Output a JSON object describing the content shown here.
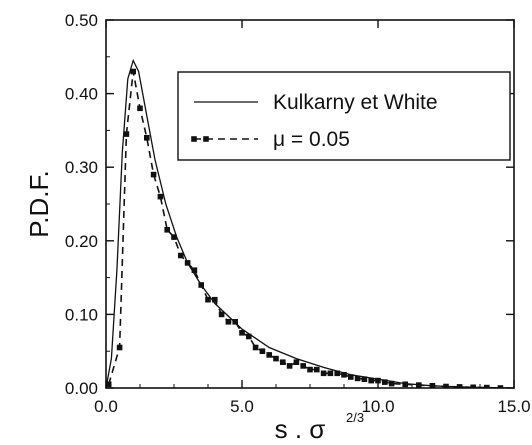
{
  "chart_data": {
    "type": "line",
    "title": "",
    "xlabel": "s . σ",
    "xlabel_sup": "2/3",
    "ylabel": "P.D.F.",
    "xlim": [
      0,
      15
    ],
    "ylim": [
      0,
      0.5
    ],
    "x_ticks": [
      0,
      5,
      10,
      15
    ],
    "x_tick_labels": [
      "0.0",
      "5.0",
      "10.0",
      "15.0"
    ],
    "y_ticks": [
      0,
      0.1,
      0.2,
      0.3,
      0.4,
      0.5
    ],
    "y_tick_labels": [
      "0.00",
      "0.10",
      "0.20",
      "0.30",
      "0.40",
      "0.50"
    ],
    "grid": false,
    "legend_position": "top-right",
    "series": [
      {
        "name": "Kulkarny et White",
        "style": "solid",
        "marker": "none",
        "x": [
          0.0,
          0.2,
          0.4,
          0.6,
          0.8,
          1.0,
          1.2,
          1.5,
          1.8,
          2.2,
          2.6,
          3.0,
          3.5,
          4.0,
          5.0,
          6.0,
          7.0,
          8.0,
          9.0,
          10.0,
          11.0,
          12.0,
          13.0,
          14.0,
          15.0
        ],
        "y": [
          0.0,
          0.04,
          0.16,
          0.32,
          0.42,
          0.445,
          0.43,
          0.37,
          0.31,
          0.25,
          0.205,
          0.17,
          0.14,
          0.115,
          0.08,
          0.055,
          0.04,
          0.028,
          0.018,
          0.012,
          0.006,
          0.003,
          0.0015,
          0.0005,
          0.0
        ]
      },
      {
        "name": "μ = 0.05",
        "style": "dashed",
        "marker": "square",
        "x": [
          0.1,
          0.5,
          0.75,
          1.0,
          1.25,
          1.5,
          1.75,
          2.0,
          2.25,
          2.5,
          2.75,
          3.0,
          3.25,
          3.5,
          3.75,
          4.0,
          4.25,
          4.5,
          4.75,
          5.0,
          5.25,
          5.5,
          5.75,
          6.0,
          6.25,
          6.5,
          6.75,
          7.0,
          7.25,
          7.5,
          7.75,
          8.0,
          8.25,
          8.5,
          8.75,
          9.0,
          9.25,
          9.5,
          9.75,
          10.0,
          10.25,
          10.5,
          11.0,
          11.5,
          12.0,
          12.5,
          13.0,
          13.5,
          14.0,
          14.5
        ],
        "y": [
          0.005,
          0.055,
          0.345,
          0.43,
          0.38,
          0.34,
          0.29,
          0.26,
          0.215,
          0.205,
          0.18,
          0.17,
          0.16,
          0.14,
          0.12,
          0.12,
          0.1,
          0.09,
          0.09,
          0.075,
          0.07,
          0.055,
          0.05,
          0.045,
          0.04,
          0.035,
          0.03,
          0.035,
          0.03,
          0.025,
          0.025,
          0.02,
          0.02,
          0.02,
          0.018,
          0.015,
          0.013,
          0.012,
          0.01,
          0.01,
          0.008,
          0.006,
          0.005,
          0.004,
          0.003,
          0.002,
          0.0015,
          0.001,
          0.0005,
          0.0
        ]
      }
    ],
    "legend": [
      {
        "label": "Kulkarny et White"
      },
      {
        "label": "μ = 0.05"
      }
    ]
  }
}
